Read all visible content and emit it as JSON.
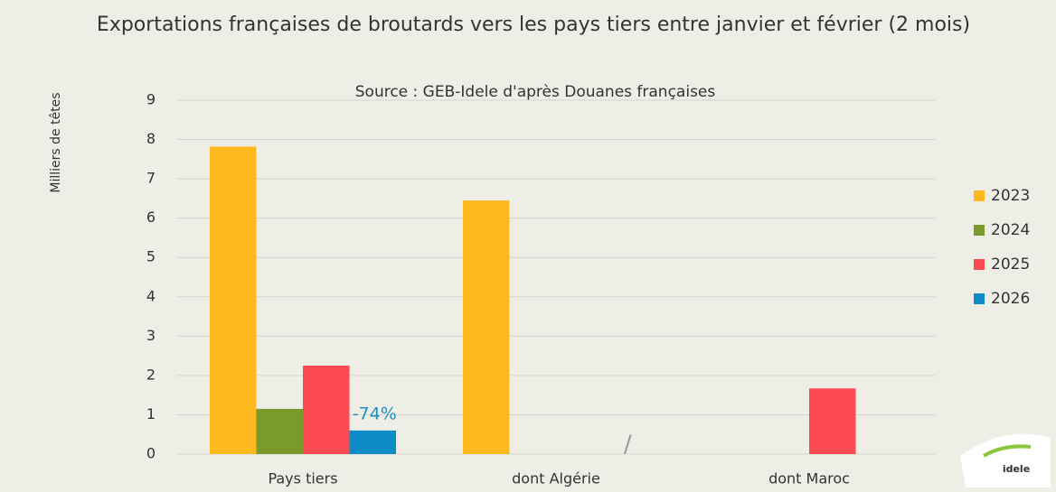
{
  "chart_data": {
    "type": "bar",
    "title": "Exportations françaises de broutards vers les pays tiers entre janvier et février (2 mois)",
    "subtitle": "Source : GEB-Idele d'après Douanes françaises",
    "y_label": "Milliers de têtes",
    "categories": [
      "Pays tiers",
      "dont Algérie",
      "dont Maroc"
    ],
    "series": [
      {
        "name": "2023",
        "color": "#fdb91e",
        "values": [
          7.82,
          6.45,
          null
        ]
      },
      {
        "name": "2024",
        "color": "#7a9a2e",
        "values": [
          1.15,
          null,
          null
        ]
      },
      {
        "name": "2025",
        "color": "#fb4b50",
        "values": [
          2.25,
          null,
          1.67
        ]
      },
      {
        "name": "2026",
        "color": "#0d8dc7",
        "values": [
          0.6,
          null,
          null
        ]
      }
    ],
    "annotations": [
      {
        "text": "-74%",
        "series": 3,
        "category": 0,
        "color": "#1a8fc6"
      },
      {
        "text": "/",
        "series": 3,
        "category": 1,
        "color": "#999999"
      }
    ],
    "ylim": [
      0,
      9
    ],
    "yticks": [
      0,
      1,
      2,
      3,
      4,
      5,
      6,
      7,
      8,
      9
    ],
    "grid": true,
    "legend": "right",
    "logo": "idele"
  }
}
